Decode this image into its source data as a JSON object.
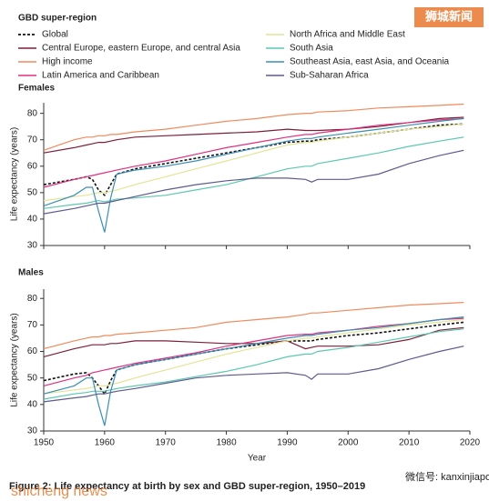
{
  "legend_title": "GBD super-region",
  "caption": "Figure 2: Life expectancy at birth by sex and GBD super-region, 1950–2019",
  "watermarks": [
    "狮城新闻",
    "shicheng news",
    "微信号: kanxinjiapo"
  ],
  "chart_data": [
    {
      "type": "line",
      "title": "Females",
      "ylabel": "Life expectancy (years)",
      "x": [
        1950,
        1955,
        1957,
        1958,
        1959,
        1960,
        1961,
        1962,
        1965,
        1970,
        1975,
        1980,
        1985,
        1990,
        1993,
        1994,
        1995,
        2000,
        2005,
        2010,
        2015,
        2019
      ],
      "xlim": [
        1950,
        2020
      ],
      "xticks": [
        1950,
        1960,
        1970,
        1980,
        1990,
        2000,
        2010,
        2020
      ],
      "ylim": [
        30,
        84
      ],
      "yticks": [
        30,
        40,
        50,
        60,
        70,
        80
      ],
      "series": [
        {
          "name": "Global",
          "color": "#111111",
          "dashed": true,
          "values": [
            53,
            55,
            56,
            55,
            51,
            49,
            53,
            57,
            59,
            61,
            63,
            65,
            67,
            69,
            69.5,
            69.5,
            70,
            71,
            72.5,
            74,
            75.5,
            76
          ]
        },
        {
          "name": "Central Europe, eastern Europe, and central Asia",
          "color": "#7b1f3a",
          "values": [
            65,
            67,
            68,
            68.5,
            69,
            69,
            69.5,
            70,
            71,
            71.5,
            72,
            72.5,
            73,
            74,
            73.5,
            73.5,
            73.5,
            74,
            75,
            76.5,
            78,
            78.5
          ]
        },
        {
          "name": "High income",
          "color": "#f08a5d",
          "values": [
            66,
            70,
            71,
            71,
            71.5,
            71.5,
            72,
            72,
            73,
            74,
            75.5,
            77,
            78,
            79.5,
            80,
            80,
            80.5,
            81,
            82,
            82.5,
            83,
            83.5
          ]
        },
        {
          "name": "Latin America and Caribbean",
          "color": "#e0307f",
          "values": [
            52,
            55,
            56,
            56.5,
            57,
            57.5,
            58,
            58.5,
            60,
            62,
            64.5,
            67,
            69,
            71,
            72,
            72,
            72.5,
            74,
            75.5,
            76.5,
            77.5,
            78
          ]
        },
        {
          "name": "North Africa and Middle East",
          "color": "#e2e596",
          "values": [
            47,
            48.5,
            49,
            49.5,
            50,
            50,
            50.5,
            51,
            53,
            56,
            59,
            62,
            65,
            68,
            69,
            69,
            69.5,
            71,
            72.5,
            74,
            75,
            76
          ]
        },
        {
          "name": "South Asia",
          "color": "#5cc8b0",
          "values": [
            44,
            45.5,
            46,
            46.5,
            47,
            46.5,
            47,
            47.5,
            48,
            49,
            51,
            53,
            56,
            59,
            60,
            60,
            61,
            63,
            65,
            67.5,
            69.5,
            71
          ]
        },
        {
          "name": "Southeast Asia, east Asia, and Oceania",
          "color": "#3a8fb5",
          "values": [
            45,
            49,
            52,
            52,
            43,
            35,
            48,
            57,
            58.5,
            60,
            62,
            64.5,
            67,
            69.5,
            70.5,
            70.5,
            71,
            72.5,
            74,
            75.5,
            77,
            78
          ]
        },
        {
          "name": "Sub-Saharan Africa",
          "color": "#5e5a8f",
          "values": [
            42,
            44,
            45,
            45.5,
            46,
            46,
            46.5,
            47,
            48.5,
            51,
            53,
            54.5,
            55.5,
            55.5,
            55,
            54,
            55,
            55,
            57,
            61,
            64,
            66
          ]
        }
      ]
    },
    {
      "type": "line",
      "title": "Males",
      "ylabel": "Life expectancy (years)",
      "xlabel": "Year",
      "x": [
        1950,
        1955,
        1957,
        1958,
        1959,
        1960,
        1961,
        1962,
        1965,
        1970,
        1975,
        1980,
        1985,
        1990,
        1993,
        1994,
        1995,
        2000,
        2005,
        2010,
        2015,
        2019
      ],
      "xlim": [
        1950,
        2020
      ],
      "xticks": [
        1950,
        1960,
        1970,
        1980,
        1990,
        2000,
        2010,
        2020
      ],
      "ylim": [
        30,
        83.5
      ],
      "yticks": [
        30,
        40,
        50,
        60,
        70,
        80
      ],
      "series": [
        {
          "color": "#111111",
          "dashed": true,
          "values": [
            49,
            51.5,
            52,
            50,
            47,
            44,
            49,
            53,
            55,
            57,
            59,
            61,
            62.5,
            64,
            64,
            64,
            64.5,
            66,
            67,
            68.5,
            70,
            71
          ]
        },
        {
          "color": "#7b1f3a",
          "values": [
            58,
            61,
            62,
            62.5,
            62.5,
            62.5,
            63,
            63,
            64,
            64,
            63.5,
            63,
            63,
            64,
            61,
            61.5,
            62,
            62,
            62.5,
            64.5,
            68,
            69
          ]
        },
        {
          "color": "#f08a5d",
          "values": [
            61,
            64,
            65,
            65.5,
            65.5,
            66,
            66,
            66.5,
            67,
            68,
            69,
            71,
            72,
            73,
            74,
            74.5,
            74.5,
            75.5,
            76.5,
            77.5,
            78,
            78.5
          ]
        },
        {
          "color": "#e0307f",
          "values": [
            47,
            50,
            51,
            52,
            52.5,
            53,
            53.5,
            54,
            55.5,
            57.5,
            59.5,
            62,
            64,
            66,
            66.5,
            66.5,
            67,
            68,
            69.5,
            70.5,
            72,
            72.5
          ]
        },
        {
          "color": "#e2e596",
          "values": [
            44,
            45.5,
            46,
            46.5,
            47,
            47,
            47.5,
            48,
            50,
            53,
            56,
            59,
            61.5,
            64,
            65,
            65,
            65.5,
            67,
            68.5,
            70,
            71,
            72
          ]
        },
        {
          "color": "#5cc8b0",
          "values": [
            42,
            44,
            44.5,
            45,
            45,
            45,
            45.5,
            46,
            47,
            48.5,
            50.5,
            52.5,
            55,
            58,
            59,
            59,
            60,
            61.5,
            63.5,
            65.5,
            67.5,
            68.5
          ]
        },
        {
          "color": "#3a8fb5",
          "values": [
            44,
            47,
            50,
            50,
            40,
            32,
            45,
            53,
            55,
            57,
            59,
            61,
            63,
            65,
            66,
            66,
            66.5,
            68,
            69,
            70.5,
            72,
            73
          ]
        },
        {
          "color": "#5e5a8f",
          "values": [
            41,
            42.5,
            43,
            43.5,
            44,
            44,
            44.5,
            45,
            46,
            48,
            50,
            51,
            51.5,
            52,
            51,
            49.5,
            51.5,
            51.5,
            53.5,
            57,
            60,
            62
          ]
        }
      ]
    }
  ]
}
